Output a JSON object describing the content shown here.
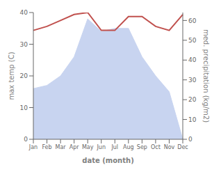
{
  "chart_data": {
    "type": "area",
    "categories": [
      "Jan",
      "Feb",
      "Mar",
      "Apr",
      "May",
      "Jun",
      "Jul",
      "Aug",
      "Sep",
      "Oct",
      "Nov",
      "Dec"
    ],
    "series": [
      {
        "type": "area",
        "color": "#c8d4f0",
        "values": [
          16,
          17,
          20,
          26,
          38,
          34,
          35,
          35,
          26,
          20,
          15,
          0
        ]
      },
      {
        "type": "line",
        "color": "#c0504d",
        "axis": "y2",
        "values": [
          55,
          57,
          60,
          63,
          64,
          55,
          55,
          62,
          62,
          57,
          55,
          63
        ]
      }
    ],
    "xlabel": "date (month)",
    "ylabel": "max temp (C)",
    "y2label": "med. precipitation (kg/m2)",
    "ylim": [
      0,
      40
    ],
    "yticks": [
      0,
      10,
      20,
      30,
      40
    ],
    "y2lim": [
      0,
      64
    ],
    "y2ticks": [
      0,
      10,
      20,
      30,
      40,
      50,
      60
    ],
    "grid": false
  }
}
